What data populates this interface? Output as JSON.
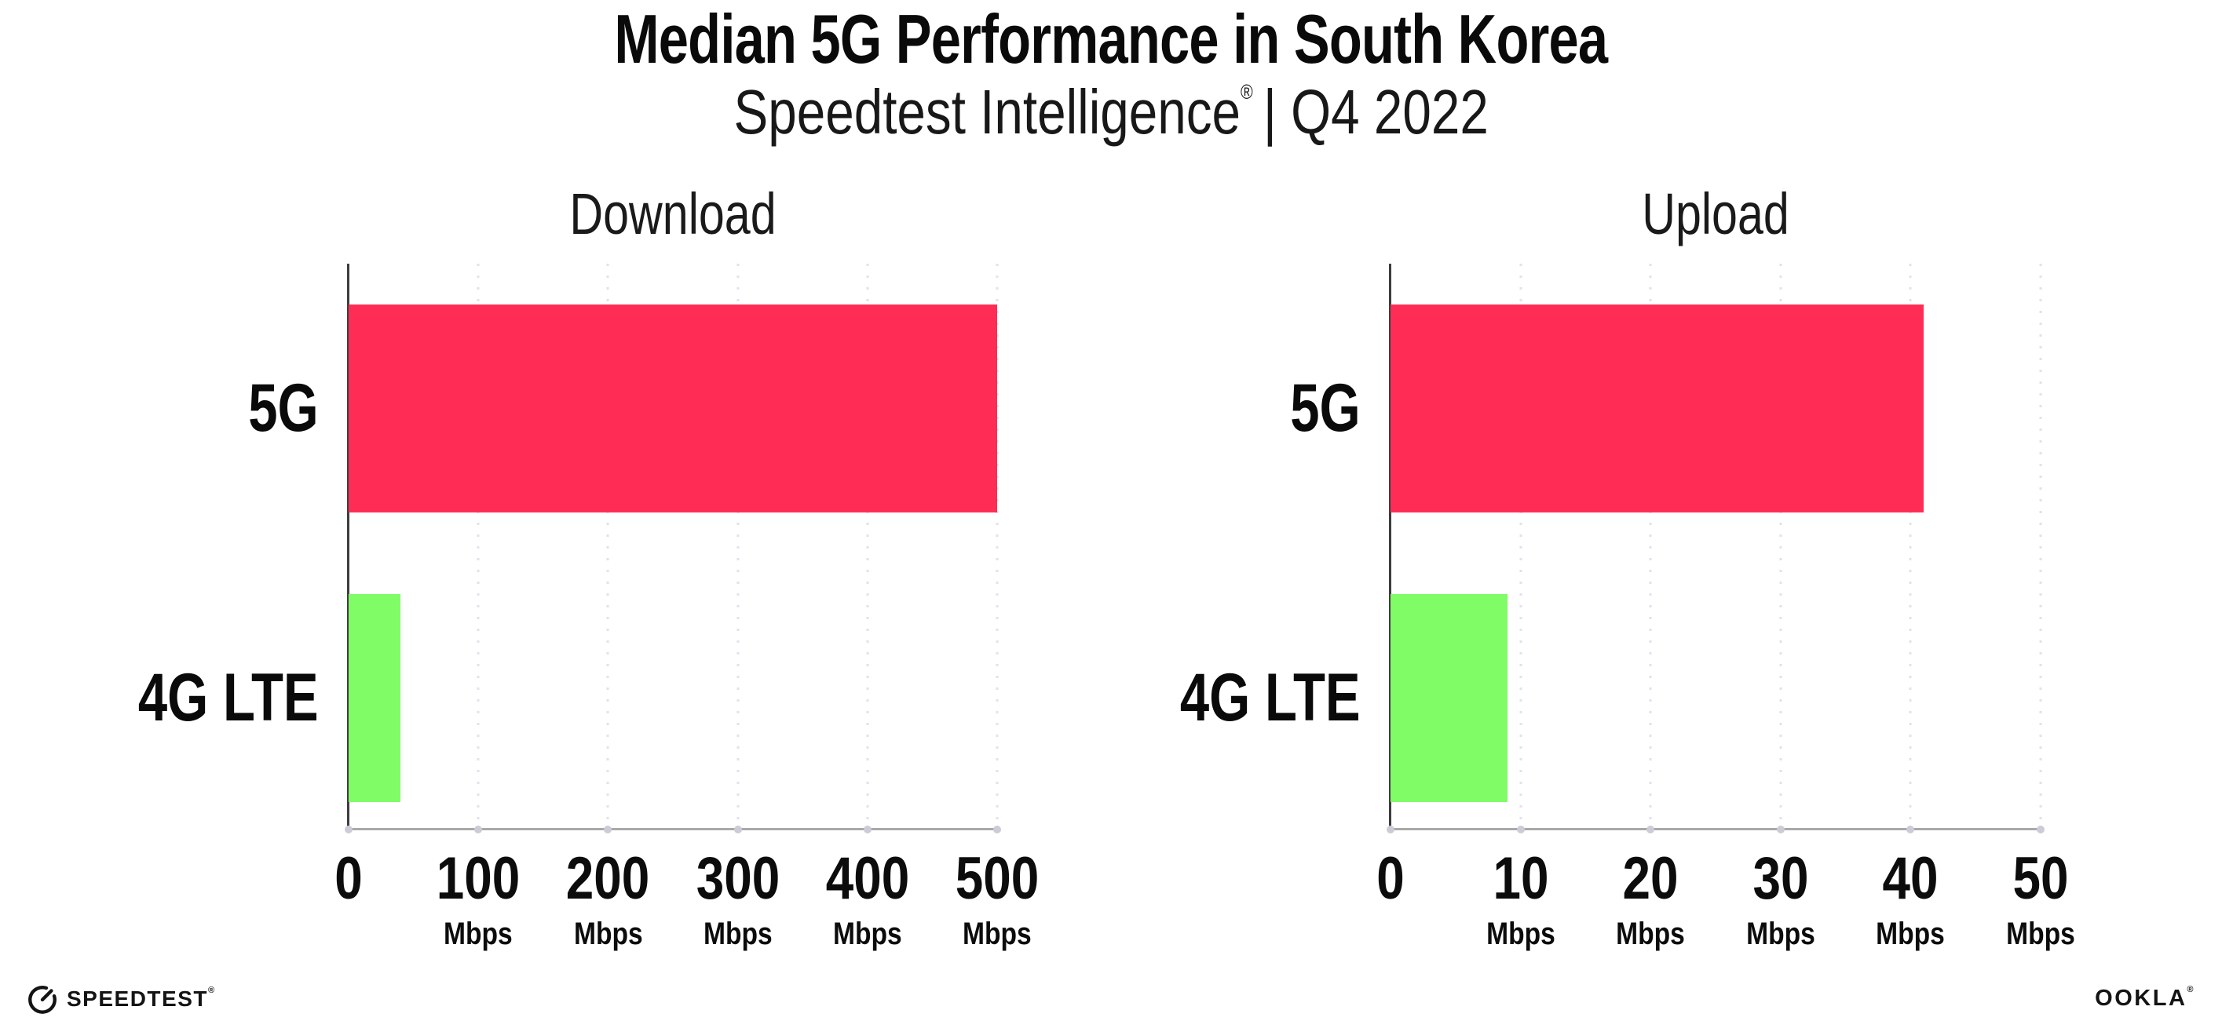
{
  "header": {
    "title": "Median 5G Performance in South Korea",
    "subtitle_brand": "Speedtest Intelligence",
    "subtitle_reg": "®",
    "subtitle_period": "| Q4 2022"
  },
  "chart_data": [
    {
      "type": "bar",
      "orientation": "horizontal",
      "title": "Download",
      "categories": [
        "5G",
        "4G LTE"
      ],
      "values": [
        500,
        40
      ],
      "unit": "Mbps",
      "xlim": [
        0,
        500
      ],
      "xticks": [
        0,
        100,
        200,
        300,
        400,
        500
      ],
      "bar_colors": [
        "#FF2D55",
        "#80FC66"
      ],
      "grid": "vertical-dotted",
      "legend": "none"
    },
    {
      "type": "bar",
      "orientation": "horizontal",
      "title": "Upload",
      "categories": [
        "5G",
        "4G LTE"
      ],
      "values": [
        41,
        9
      ],
      "unit": "Mbps",
      "xlim": [
        0,
        50
      ],
      "xticks": [
        0,
        10,
        20,
        30,
        40,
        50
      ],
      "bar_colors": [
        "#FF2D55",
        "#80FC66"
      ],
      "grid": "vertical-dotted",
      "legend": "none"
    }
  ],
  "footer": {
    "speedtest_wordmark": "SPEEDTEST",
    "speedtest_reg": "®",
    "ookla_wordmark": "OOKLA",
    "ookla_reg": "®"
  },
  "colors": {
    "bar_5g": "#FF2D55",
    "bar_4g_lte": "#80FC66",
    "gridline": "#E2E2EC",
    "x_axis": "#A9A9A9",
    "y_axis": "#3D3D3D",
    "text": "#111111",
    "background": "#FFFFFF"
  }
}
